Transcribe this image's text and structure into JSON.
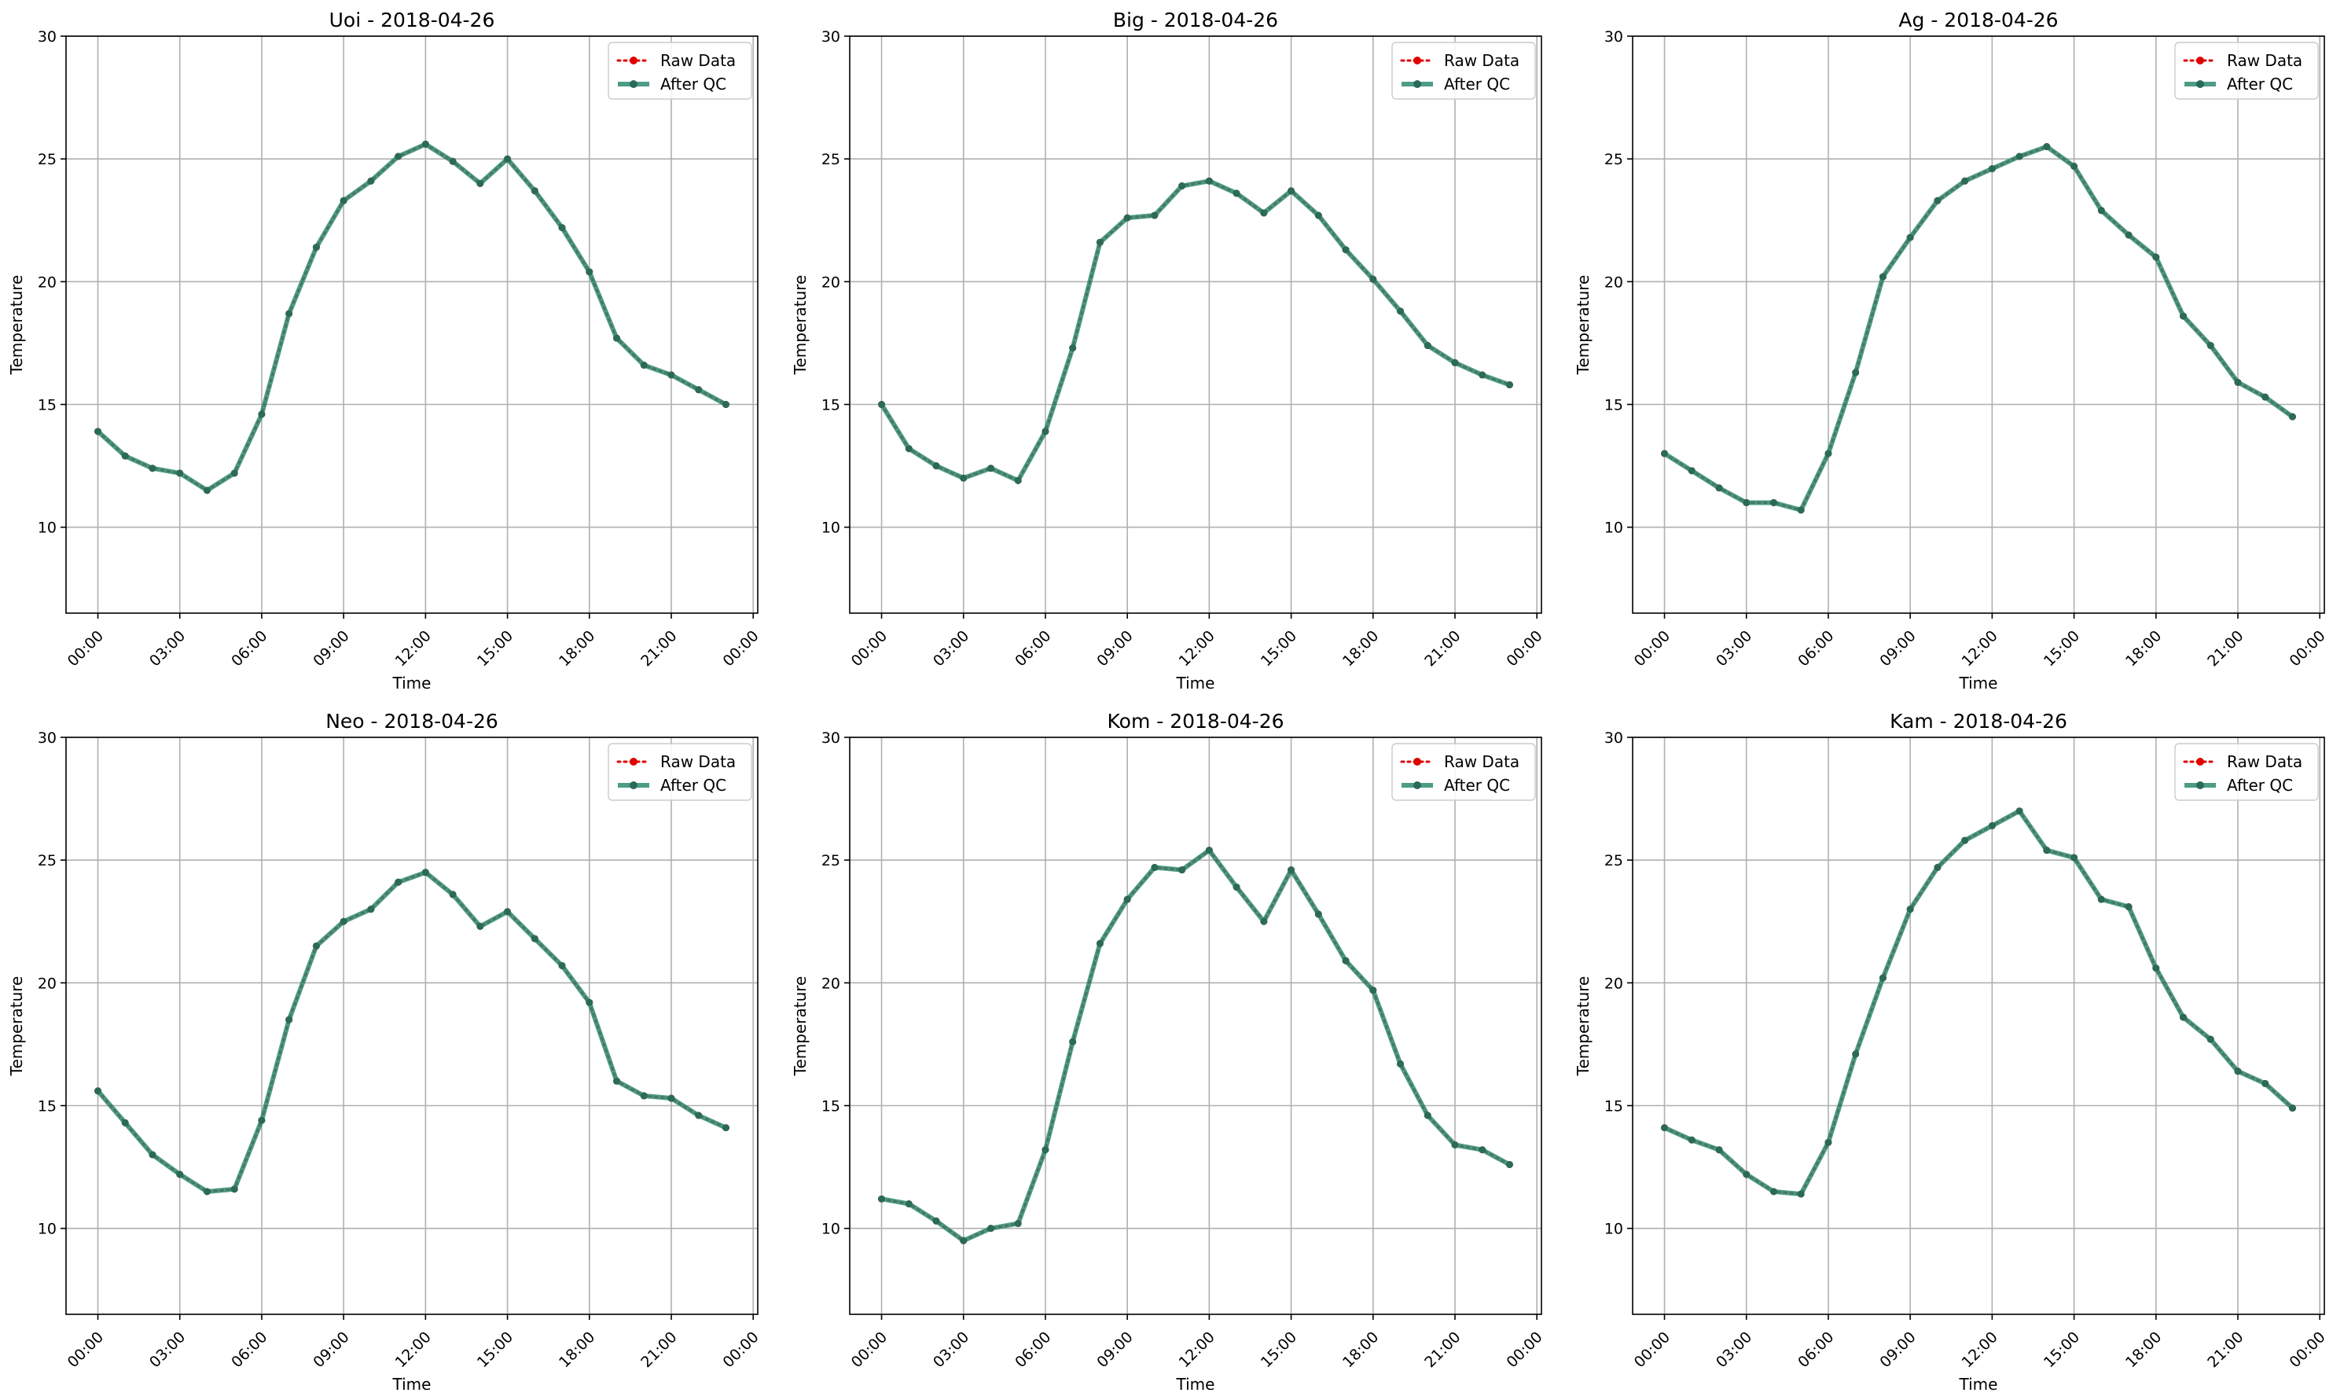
{
  "figure": {
    "xlabel": "Time",
    "ylabel": "Temperature",
    "x_tick_labels": [
      "00:00",
      "03:00",
      "06:00",
      "09:00",
      "12:00",
      "15:00",
      "18:00",
      "21:00",
      "00:00"
    ],
    "y_ticks": [
      10,
      15,
      20,
      25,
      30
    ],
    "legend": {
      "raw": "Raw Data",
      "qc": "After QC",
      "placement": "top-right"
    },
    "colors": {
      "raw": "#e00000",
      "qc": "#2e8b72"
    },
    "grid": true
  },
  "chart_data": [
    {
      "type": "line",
      "title": "Uoi - 2018-04-26",
      "xlabel": "Time",
      "ylabel": "Temperature",
      "x": [
        "00:00",
        "01:00",
        "02:00",
        "03:00",
        "04:00",
        "05:00",
        "06:00",
        "07:00",
        "08:00",
        "09:00",
        "10:00",
        "11:00",
        "12:00",
        "13:00",
        "14:00",
        "15:00",
        "16:00",
        "17:00",
        "18:00",
        "19:00",
        "20:00",
        "21:00",
        "22:00",
        "23:00"
      ],
      "xlim": [
        "2018-04-25 22:50",
        "2018-04-27 00:10"
      ],
      "ylim": [
        6.5,
        30
      ],
      "series": [
        {
          "name": "Raw Data",
          "values": [
            13.9,
            12.9,
            12.4,
            12.2,
            11.5,
            12.2,
            14.6,
            18.7,
            21.4,
            23.3,
            24.1,
            25.1,
            25.6,
            24.9,
            24.0,
            25.0,
            23.7,
            22.2,
            20.4,
            17.7,
            16.6,
            16.2,
            15.6,
            15.0
          ]
        },
        {
          "name": "After QC",
          "values": [
            13.9,
            12.9,
            12.4,
            12.2,
            11.5,
            12.2,
            14.6,
            18.7,
            21.4,
            23.3,
            24.1,
            25.1,
            25.6,
            24.9,
            24.0,
            25.0,
            23.7,
            22.2,
            20.4,
            17.7,
            16.6,
            16.2,
            15.6,
            15.0
          ]
        }
      ],
      "grid": true,
      "legend": "top-right"
    },
    {
      "type": "line",
      "title": "Big - 2018-04-26",
      "xlabel": "Time",
      "ylabel": "Temperature",
      "x": [
        "00:00",
        "01:00",
        "02:00",
        "03:00",
        "04:00",
        "05:00",
        "06:00",
        "07:00",
        "08:00",
        "09:00",
        "10:00",
        "11:00",
        "12:00",
        "13:00",
        "14:00",
        "15:00",
        "16:00",
        "17:00",
        "18:00",
        "19:00",
        "20:00",
        "21:00",
        "22:00",
        "23:00"
      ],
      "xlim": [
        "2018-04-25 22:50",
        "2018-04-27 00:10"
      ],
      "ylim": [
        6.5,
        30
      ],
      "series": [
        {
          "name": "Raw Data",
          "values": [
            15.0,
            13.2,
            12.5,
            12.0,
            12.4,
            11.9,
            13.9,
            17.3,
            21.6,
            22.6,
            22.7,
            23.9,
            24.1,
            23.6,
            22.8,
            23.7,
            22.7,
            21.3,
            20.1,
            18.8,
            17.4,
            16.7,
            16.2,
            15.8
          ]
        },
        {
          "name": "After QC",
          "values": [
            15.0,
            13.2,
            12.5,
            12.0,
            12.4,
            11.9,
            13.9,
            17.3,
            21.6,
            22.6,
            22.7,
            23.9,
            24.1,
            23.6,
            22.8,
            23.7,
            22.7,
            21.3,
            20.1,
            18.8,
            17.4,
            16.7,
            16.2,
            15.8
          ]
        }
      ],
      "grid": true,
      "legend": "top-right"
    },
    {
      "type": "line",
      "title": "Ag - 2018-04-26",
      "xlabel": "Time",
      "ylabel": "Temperature",
      "x": [
        "00:00",
        "01:00",
        "02:00",
        "03:00",
        "04:00",
        "05:00",
        "06:00",
        "07:00",
        "08:00",
        "09:00",
        "10:00",
        "11:00",
        "12:00",
        "13:00",
        "14:00",
        "15:00",
        "16:00",
        "17:00",
        "18:00",
        "19:00",
        "20:00",
        "21:00",
        "22:00",
        "23:00"
      ],
      "xlim": [
        "2018-04-25 22:50",
        "2018-04-27 00:10"
      ],
      "ylim": [
        6.5,
        30
      ],
      "series": [
        {
          "name": "Raw Data",
          "values": [
            13.0,
            12.3,
            11.6,
            11.0,
            11.0,
            10.7,
            13.0,
            16.3,
            20.2,
            21.8,
            23.3,
            24.1,
            24.6,
            25.1,
            25.5,
            24.7,
            22.9,
            21.9,
            21.0,
            18.6,
            17.4,
            15.9,
            15.3,
            14.5
          ]
        },
        {
          "name": "After QC",
          "values": [
            13.0,
            12.3,
            11.6,
            11.0,
            11.0,
            10.7,
            13.0,
            16.3,
            20.2,
            21.8,
            23.3,
            24.1,
            24.6,
            25.1,
            25.5,
            24.7,
            22.9,
            21.9,
            21.0,
            18.6,
            17.4,
            15.9,
            15.3,
            14.5
          ]
        }
      ],
      "grid": true,
      "legend": "top-right"
    },
    {
      "type": "line",
      "title": "Neo - 2018-04-26",
      "xlabel": "Time",
      "ylabel": "Temperature",
      "x": [
        "00:00",
        "01:00",
        "02:00",
        "03:00",
        "04:00",
        "05:00",
        "06:00",
        "07:00",
        "08:00",
        "09:00",
        "10:00",
        "11:00",
        "12:00",
        "13:00",
        "14:00",
        "15:00",
        "16:00",
        "17:00",
        "18:00",
        "19:00",
        "20:00",
        "21:00",
        "22:00",
        "23:00"
      ],
      "xlim": [
        "2018-04-25 22:50",
        "2018-04-27 00:10"
      ],
      "ylim": [
        6.5,
        30
      ],
      "series": [
        {
          "name": "Raw Data",
          "values": [
            15.6,
            14.3,
            13.0,
            12.2,
            11.5,
            11.6,
            14.4,
            18.5,
            21.5,
            22.5,
            23.0,
            24.1,
            24.5,
            23.6,
            22.3,
            22.9,
            21.8,
            20.7,
            19.2,
            16.0,
            15.4,
            15.3,
            14.6,
            14.1
          ]
        },
        {
          "name": "After QC",
          "values": [
            15.6,
            14.3,
            13.0,
            12.2,
            11.5,
            11.6,
            14.4,
            18.5,
            21.5,
            22.5,
            23.0,
            24.1,
            24.5,
            23.6,
            22.3,
            22.9,
            21.8,
            20.7,
            19.2,
            16.0,
            15.4,
            15.3,
            14.6,
            14.1
          ]
        }
      ],
      "grid": true,
      "legend": "top-right"
    },
    {
      "type": "line",
      "title": "Kom - 2018-04-26",
      "xlabel": "Time",
      "ylabel": "Temperature",
      "x": [
        "00:00",
        "01:00",
        "02:00",
        "03:00",
        "04:00",
        "05:00",
        "06:00",
        "07:00",
        "08:00",
        "09:00",
        "10:00",
        "11:00",
        "12:00",
        "13:00",
        "14:00",
        "15:00",
        "16:00",
        "17:00",
        "18:00",
        "19:00",
        "20:00",
        "21:00",
        "22:00",
        "23:00"
      ],
      "xlim": [
        "2018-04-25 22:50",
        "2018-04-27 00:10"
      ],
      "ylim": [
        6.5,
        30
      ],
      "series": [
        {
          "name": "Raw Data",
          "values": [
            11.2,
            11.0,
            10.3,
            9.5,
            10.0,
            10.2,
            13.2,
            17.6,
            21.6,
            23.4,
            24.7,
            24.6,
            25.4,
            23.9,
            22.5,
            24.6,
            22.8,
            20.9,
            19.7,
            16.7,
            14.6,
            13.4,
            13.2,
            12.6
          ]
        },
        {
          "name": "After QC",
          "values": [
            11.2,
            11.0,
            10.3,
            9.5,
            10.0,
            10.2,
            13.2,
            17.6,
            21.6,
            23.4,
            24.7,
            24.6,
            25.4,
            23.9,
            22.5,
            24.6,
            22.8,
            20.9,
            19.7,
            16.7,
            14.6,
            13.4,
            13.2,
            12.6
          ]
        }
      ],
      "grid": true,
      "legend": "top-right"
    },
    {
      "type": "line",
      "title": "Kam - 2018-04-26",
      "xlabel": "Time",
      "ylabel": "Temperature",
      "x": [
        "00:00",
        "01:00",
        "02:00",
        "03:00",
        "04:00",
        "05:00",
        "06:00",
        "07:00",
        "08:00",
        "09:00",
        "10:00",
        "11:00",
        "12:00",
        "13:00",
        "14:00",
        "15:00",
        "16:00",
        "17:00",
        "18:00",
        "19:00",
        "20:00",
        "21:00",
        "22:00",
        "23:00"
      ],
      "xlim": [
        "2018-04-25 22:50",
        "2018-04-27 00:10"
      ],
      "ylim": [
        6.5,
        30
      ],
      "series": [
        {
          "name": "Raw Data",
          "values": [
            14.1,
            13.6,
            13.2,
            12.2,
            11.5,
            11.4,
            13.5,
            17.1,
            20.2,
            23.0,
            24.7,
            25.8,
            26.4,
            27.0,
            25.4,
            25.1,
            23.4,
            23.1,
            20.6,
            18.6,
            17.7,
            16.4,
            15.9,
            14.9
          ]
        },
        {
          "name": "After QC",
          "values": [
            14.1,
            13.6,
            13.2,
            12.2,
            11.5,
            11.4,
            13.5,
            17.1,
            20.2,
            23.0,
            24.7,
            25.8,
            26.4,
            27.0,
            25.4,
            25.1,
            23.4,
            23.1,
            20.6,
            18.6,
            17.7,
            16.4,
            15.9,
            14.9
          ]
        }
      ],
      "grid": true,
      "legend": "top-right"
    }
  ]
}
